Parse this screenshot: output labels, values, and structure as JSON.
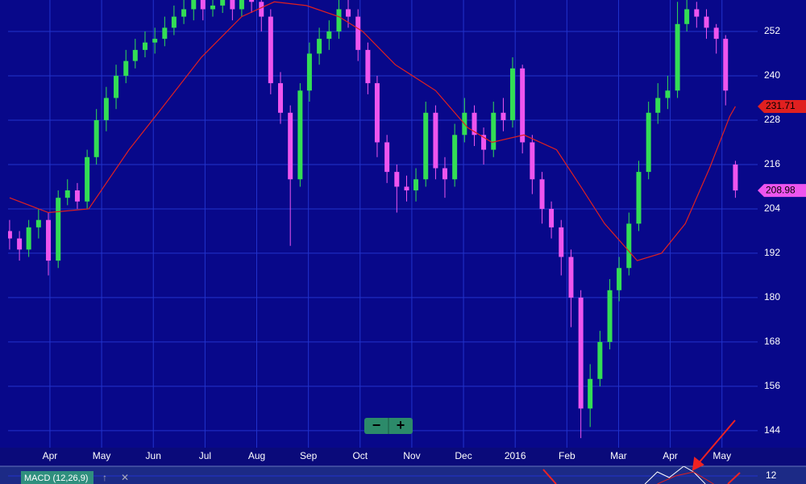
{
  "chart_data": [
    {
      "type": "candlestick",
      "x": [
        3.22,
        3.41,
        3.59,
        3.78,
        3.97,
        4.16,
        4.34,
        4.53,
        4.72,
        4.9,
        5.09,
        5.28,
        5.47,
        5.65,
        5.84,
        6.03,
        6.22,
        6.4,
        6.59,
        6.78,
        6.96,
        7.15,
        7.34,
        7.53,
        7.71,
        7.9,
        8.09,
        8.27,
        8.46,
        8.65,
        8.84,
        9.02,
        9.21,
        9.4,
        9.59,
        9.77,
        9.96,
        10.15,
        10.33,
        10.52,
        10.71,
        10.9,
        11.08,
        11.27,
        11.46,
        11.64,
        11.83,
        12.02,
        12.21,
        12.39,
        12.58,
        12.77,
        12.95,
        13.14,
        13.33,
        13.52,
        13.7,
        13.89,
        14.08,
        14.27,
        14.45,
        14.64,
        14.83,
        15.01,
        15.2,
        15.39,
        15.58,
        15.76,
        15.95,
        16.14,
        16.32,
        16.51,
        16.7,
        16.89,
        17.07,
        17.26
      ],
      "open": [
        198,
        196,
        193,
        199,
        201,
        190,
        207,
        209,
        206,
        218,
        228,
        234,
        240,
        244,
        247,
        249,
        250,
        253,
        256,
        258,
        261,
        258,
        259,
        262,
        258,
        262,
        260,
        256,
        238,
        230,
        212,
        236,
        246,
        250,
        252,
        258,
        256,
        247,
        238,
        222,
        214,
        210,
        209,
        212,
        230,
        215,
        212,
        224,
        230,
        224,
        220,
        230,
        228,
        242,
        222,
        212,
        204,
        199,
        191,
        180,
        150,
        158,
        168,
        182,
        188,
        200,
        214,
        230,
        234,
        236,
        254,
        258,
        256,
        253,
        250,
        216
      ],
      "high": [
        201,
        198,
        201,
        204,
        203,
        209,
        212,
        211,
        220,
        231,
        237,
        243,
        247,
        250,
        252,
        253,
        256,
        259,
        261,
        263,
        263,
        262,
        264,
        264,
        264,
        264,
        262,
        258,
        241,
        232,
        238,
        249,
        253,
        255,
        261,
        261,
        258,
        249,
        240,
        224,
        216,
        213,
        215,
        233,
        232,
        218,
        227,
        234,
        232,
        226,
        233,
        234,
        245,
        243,
        224,
        214,
        206,
        201,
        193,
        182,
        162,
        171,
        185,
        191,
        203,
        217,
        233,
        238,
        240,
        260,
        261,
        260,
        258,
        254,
        251,
        217
      ],
      "low": [
        193,
        190,
        191,
        196,
        186,
        188,
        205,
        204,
        204,
        216,
        225,
        231,
        238,
        242,
        245,
        246,
        248,
        251,
        254,
        255,
        255,
        256,
        257,
        255,
        256,
        257,
        252,
        235,
        227,
        194,
        210,
        233,
        243,
        247,
        250,
        253,
        244,
        235,
        218,
        211,
        203,
        206,
        206,
        210,
        212,
        207,
        210,
        222,
        221,
        216,
        218,
        225,
        226,
        219,
        208,
        200,
        196,
        186,
        172,
        142,
        145,
        156,
        166,
        179,
        186,
        198,
        212,
        227,
        231,
        234,
        252,
        253,
        250,
        246,
        232,
        207
      ],
      "close": [
        196,
        193,
        199,
        201,
        190,
        207,
        209,
        206,
        218,
        228,
        234,
        240,
        244,
        247,
        249,
        250,
        253,
        256,
        258,
        261,
        258,
        259,
        262,
        258,
        262,
        260,
        256,
        238,
        230,
        212,
        236,
        246,
        250,
        252,
        258,
        256,
        247,
        238,
        222,
        214,
        210,
        209,
        212,
        230,
        215,
        212,
        224,
        230,
        224,
        220,
        230,
        228,
        242,
        222,
        212,
        204,
        199,
        191,
        180,
        150,
        158,
        168,
        182,
        188,
        200,
        214,
        230,
        234,
        236,
        254,
        258,
        256,
        253,
        250,
        236,
        208.98
      ],
      "up_color": "#33dd55",
      "down_color": "#ee55ee",
      "ma": {
        "color": "#e02020",
        "x": [
          3.22,
          3.97,
          4.75,
          5.53,
          6.15,
          6.93,
          7.71,
          8.34,
          8.96,
          9.59,
          10.05,
          10.68,
          11.46,
          12.08,
          12.55,
          13.17,
          13.8,
          14.27,
          14.73,
          15.36,
          15.83,
          16.29,
          16.76,
          17.15,
          17.26
        ],
        "values": [
          207,
          203,
          204,
          220,
          231,
          245,
          256,
          260,
          259,
          256,
          252,
          243,
          236,
          226,
          222,
          224,
          220,
          210,
          200,
          190,
          192,
          200,
          215,
          229,
          231.71
        ]
      },
      "xlim": [
        3.19,
        17.69
      ],
      "xticks": [
        {
          "value": 4,
          "label": "Apr"
        },
        {
          "value": 5,
          "label": "May"
        },
        {
          "value": 6,
          "label": "Jun"
        },
        {
          "value": 7,
          "label": "Jul"
        },
        {
          "value": 8,
          "label": "Aug"
        },
        {
          "value": 9,
          "label": "Sep"
        },
        {
          "value": 10,
          "label": "Oct"
        },
        {
          "value": 11,
          "label": "Nov"
        },
        {
          "value": 12,
          "label": "Dec"
        },
        {
          "value": 13,
          "label": "2016"
        },
        {
          "value": 14,
          "label": "Feb"
        },
        {
          "value": 15,
          "label": "Mar"
        },
        {
          "value": 16,
          "label": "Apr"
        },
        {
          "value": 17,
          "label": "May"
        }
      ],
      "ylim": [
        139.4,
        260.5
      ],
      "yticks": [
        144,
        156,
        168,
        180,
        192,
        204,
        216,
        228,
        240,
        252
      ],
      "grid": true
    },
    {
      "type": "line",
      "title": "MACD (12,26,9)",
      "series": [
        {
          "color": "#ffffff",
          "x": [
            15.51,
            15.75,
            15.98,
            16.26,
            16.45,
            16.68
          ],
          "values": [
            10,
            13,
            11.6,
            14.4,
            13,
            10
          ]
        },
        {
          "color": "#e02020",
          "x": [
            15.75,
            16.1,
            16.45,
            16.84
          ],
          "values": [
            10,
            12,
            13,
            10
          ]
        }
      ],
      "xlim": [
        3.19,
        17.69
      ],
      "ylim": [
        10,
        18
      ],
      "yticks": [
        12
      ]
    }
  ],
  "ui": {
    "zoom_out": "−",
    "zoom_in": "+",
    "move_up": "↑",
    "close": "✕"
  }
}
